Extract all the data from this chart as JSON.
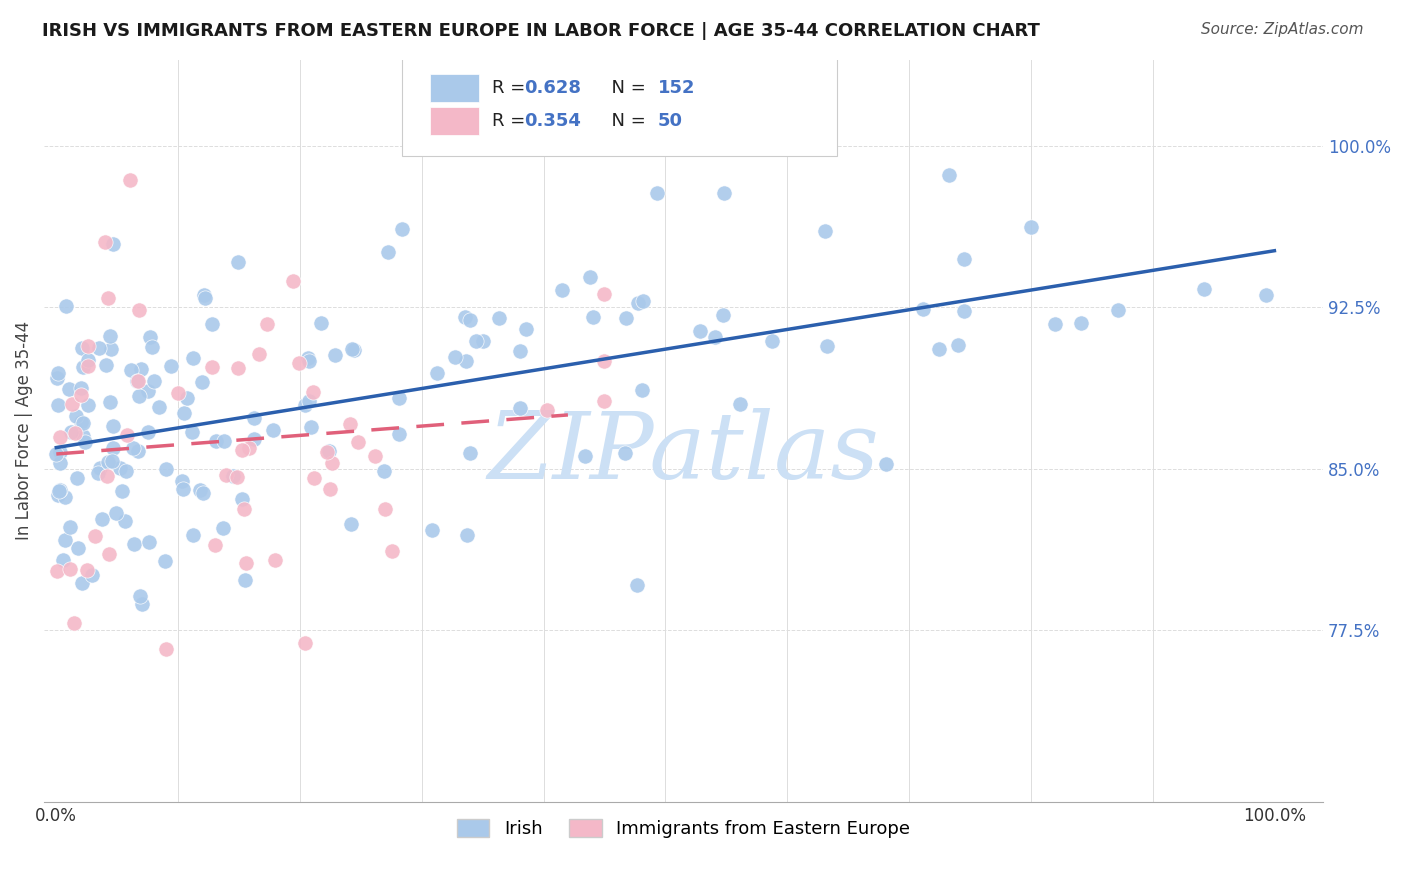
{
  "title": "IRISH VS IMMIGRANTS FROM EASTERN EUROPE IN LABOR FORCE | AGE 35-44 CORRELATION CHART",
  "source": "Source: ZipAtlas.com",
  "ylabel": "In Labor Force | Age 35-44",
  "irish_R": 0.628,
  "irish_N": 152,
  "eastern_europe_R": 0.354,
  "eastern_europe_N": 50,
  "irish_color": "#aac9ea",
  "eastern_europe_color": "#f4b8c8",
  "irish_line_color": "#2b5fad",
  "eastern_europe_line_color": "#e0607a",
  "eastern_europe_line_style": "dashed",
  "watermark_text": "ZIPatlas",
  "watermark_color": "#cce0f5",
  "background_color": "#ffffff",
  "ytick_labels": [
    "77.5%",
    "85.0%",
    "92.5%",
    "100.0%"
  ],
  "ytick_values": [
    0.775,
    0.85,
    0.925,
    1.0
  ],
  "ytick_color": "#4472c4",
  "grid_color": "#dddddd",
  "title_fontsize": 13,
  "source_fontsize": 11,
  "tick_fontsize": 12,
  "legend_fontsize": 13
}
